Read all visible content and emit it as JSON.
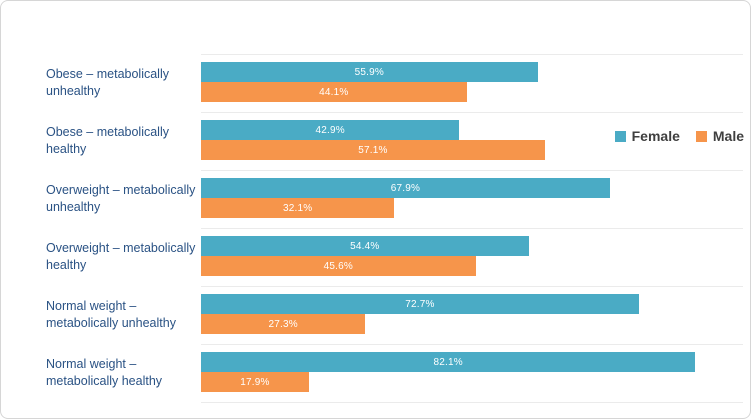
{
  "chart_data": {
    "type": "bar",
    "orientation": "horizontal",
    "title": "",
    "xlabel": "",
    "ylabel": "",
    "xlim": [
      0,
      90
    ],
    "grid": "horizontal-row-separators",
    "legend_position": "right",
    "value_label_format": "percent-one-decimal",
    "categories": [
      "Obese – metabolically\nunhealthy",
      "Obese – metabolically\nhealthy",
      "Overweight – metabolically\nunhealthy",
      "Overweight – metabolically\nhealthy",
      "Normal weight –\nmetabolically unhealthy",
      "Normal weight –\nmetabolically healthy"
    ],
    "series": [
      {
        "name": "Female",
        "color": "#4aabc5",
        "values": [
          55.9,
          42.9,
          67.9,
          54.4,
          72.7,
          82.1
        ]
      },
      {
        "name": "Male",
        "color": "#f6954b",
        "values": [
          44.1,
          57.1,
          32.1,
          45.6,
          27.3,
          17.9
        ]
      }
    ]
  },
  "legend": {
    "items": [
      {
        "label": "Female",
        "color": "#4aabc5"
      },
      {
        "label": "Male",
        "color": "#f6954b"
      }
    ]
  },
  "colors": {
    "female_bar": "#4aabc5",
    "male_bar": "#f6954b",
    "category_label_text": "#2a5284",
    "legend_text": "#3f3f3f",
    "bar_value_text": "#ffffff",
    "gridline": "#ebebeb",
    "frame_border": "#d6d6d6",
    "background": "#ffffff"
  }
}
